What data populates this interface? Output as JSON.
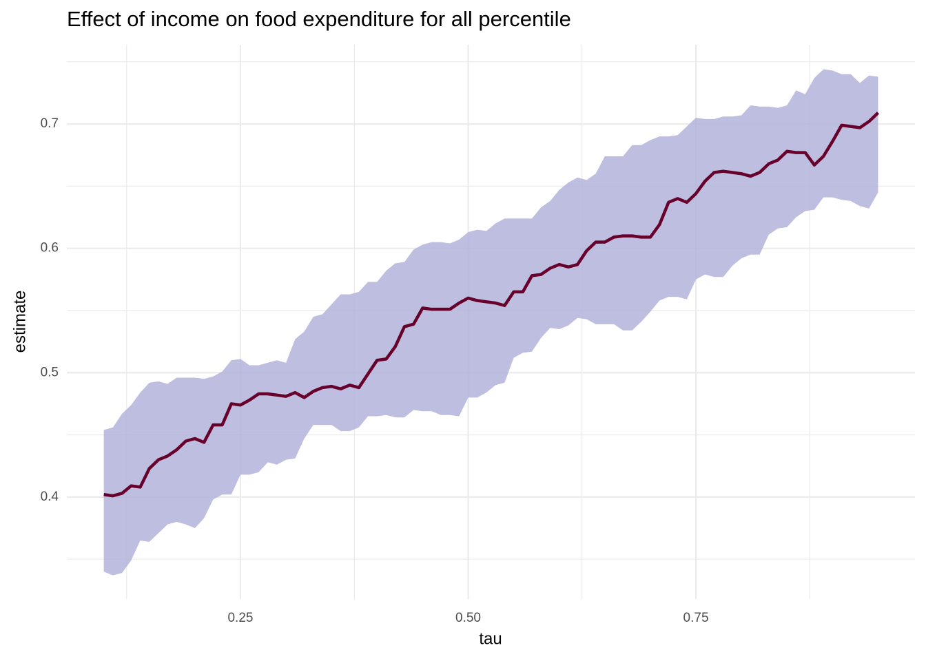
{
  "chart_data": {
    "type": "line",
    "title": "Effect of income on food expenditure for all percentile",
    "xlabel": "tau",
    "ylabel": "estimate",
    "xlim": [
      0.0594,
      0.9905
    ],
    "ylim": [
      0.318,
      0.7637
    ],
    "xticks": [
      {
        "value": 0.25,
        "label": "0.25"
      },
      {
        "value": 0.5,
        "label": "0.50"
      },
      {
        "value": 0.75,
        "label": "0.75"
      }
    ],
    "yticks": [
      0.4,
      0.5,
      0.6,
      0.7
    ],
    "x_minor_ticks": [
      0.125,
      0.375,
      0.625,
      0.875
    ],
    "y_minor_ticks": [
      0.35,
      0.45,
      0.55,
      0.65,
      0.75
    ],
    "grid": true,
    "x": [
      0.1,
      0.11,
      0.12,
      0.13,
      0.14,
      0.15,
      0.16,
      0.17,
      0.18,
      0.19,
      0.2,
      0.21,
      0.22,
      0.23,
      0.24,
      0.25,
      0.26,
      0.27,
      0.28,
      0.29,
      0.3,
      0.31,
      0.32,
      0.33,
      0.34,
      0.35,
      0.36,
      0.37,
      0.38,
      0.39,
      0.4,
      0.41,
      0.42,
      0.43,
      0.44,
      0.45,
      0.46,
      0.47,
      0.48,
      0.49,
      0.5,
      0.51,
      0.52,
      0.53,
      0.54,
      0.55,
      0.56,
      0.57,
      0.58,
      0.59,
      0.6,
      0.61,
      0.62,
      0.63,
      0.64,
      0.65,
      0.66,
      0.67,
      0.68,
      0.69,
      0.7,
      0.71,
      0.72,
      0.73,
      0.74,
      0.75,
      0.76,
      0.77,
      0.78,
      0.79,
      0.8,
      0.81,
      0.82,
      0.83,
      0.84,
      0.85,
      0.86,
      0.87,
      0.88,
      0.89,
      0.9,
      0.91,
      0.92,
      0.93,
      0.94,
      0.95
    ],
    "band": {
      "color": "#b3b3db",
      "upper": [
        0.454,
        0.456,
        0.467,
        0.474,
        0.484,
        0.492,
        0.493,
        0.491,
        0.496,
        0.496,
        0.496,
        0.495,
        0.497,
        0.501,
        0.51,
        0.511,
        0.506,
        0.506,
        0.508,
        0.51,
        0.508,
        0.527,
        0.533,
        0.545,
        0.547,
        0.555,
        0.563,
        0.563,
        0.565,
        0.573,
        0.573,
        0.582,
        0.588,
        0.589,
        0.599,
        0.603,
        0.605,
        0.605,
        0.604,
        0.607,
        0.613,
        0.615,
        0.614,
        0.62,
        0.624,
        0.624,
        0.624,
        0.624,
        0.633,
        0.638,
        0.647,
        0.653,
        0.657,
        0.655,
        0.66,
        0.674,
        0.674,
        0.674,
        0.683,
        0.683,
        0.687,
        0.69,
        0.69,
        0.691,
        0.698,
        0.705,
        0.704,
        0.704,
        0.706,
        0.706,
        0.707,
        0.715,
        0.714,
        0.714,
        0.713,
        0.715,
        0.727,
        0.724,
        0.737,
        0.744,
        0.743,
        0.74,
        0.74,
        0.733,
        0.739,
        0.738
      ],
      "lower": [
        0.34,
        0.337,
        0.339,
        0.349,
        0.365,
        0.364,
        0.371,
        0.378,
        0.38,
        0.378,
        0.375,
        0.383,
        0.398,
        0.402,
        0.402,
        0.418,
        0.418,
        0.42,
        0.428,
        0.426,
        0.43,
        0.431,
        0.447,
        0.458,
        0.458,
        0.458,
        0.453,
        0.453,
        0.456,
        0.465,
        0.465,
        0.466,
        0.464,
        0.464,
        0.47,
        0.469,
        0.469,
        0.466,
        0.466,
        0.465,
        0.48,
        0.48,
        0.484,
        0.49,
        0.492,
        0.512,
        0.516,
        0.517,
        0.528,
        0.536,
        0.535,
        0.538,
        0.544,
        0.543,
        0.539,
        0.539,
        0.539,
        0.534,
        0.534,
        0.541,
        0.549,
        0.558,
        0.561,
        0.561,
        0.559,
        0.575,
        0.579,
        0.577,
        0.577,
        0.586,
        0.592,
        0.595,
        0.595,
        0.611,
        0.616,
        0.617,
        0.625,
        0.63,
        0.631,
        0.641,
        0.641,
        0.639,
        0.638,
        0.634,
        0.632,
        0.645
      ]
    },
    "series": [
      {
        "color": "#67002a",
        "values": [
          0.402,
          0.401,
          0.403,
          0.409,
          0.408,
          0.423,
          0.43,
          0.433,
          0.438,
          0.445,
          0.447,
          0.444,
          0.458,
          0.458,
          0.475,
          0.474,
          0.478,
          0.483,
          0.483,
          0.482,
          0.481,
          0.484,
          0.48,
          0.485,
          0.488,
          0.489,
          0.487,
          0.49,
          0.488,
          0.499,
          0.51,
          0.511,
          0.521,
          0.537,
          0.539,
          0.552,
          0.551,
          0.551,
          0.551,
          0.556,
          0.56,
          0.558,
          0.557,
          0.556,
          0.554,
          0.565,
          0.565,
          0.578,
          0.579,
          0.584,
          0.587,
          0.585,
          0.587,
          0.598,
          0.605,
          0.605,
          0.609,
          0.61,
          0.61,
          0.609,
          0.609,
          0.619,
          0.637,
          0.64,
          0.637,
          0.644,
          0.654,
          0.661,
          0.662,
          0.661,
          0.66,
          0.658,
          0.661,
          0.668,
          0.671,
          0.678,
          0.677,
          0.677,
          0.667,
          0.674,
          0.686,
          0.699,
          0.698,
          0.697,
          0.702,
          0.709
        ]
      }
    ]
  }
}
